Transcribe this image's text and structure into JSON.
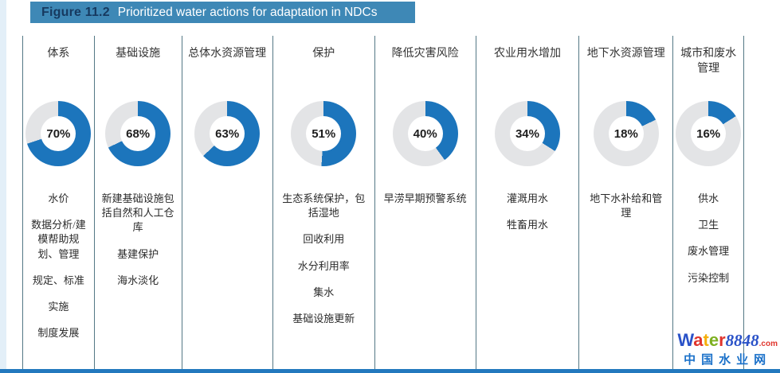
{
  "figure": {
    "label": "Figure 11.2",
    "title": "Prioritized water actions for adaptation in NDCs"
  },
  "colors": {
    "banner_blue": "#3E88B6",
    "figure_label_navy": "#16395F",
    "donut_fill_blue": "#1C75BC",
    "donut_rest_gray": "#E3E4E6",
    "divider_teal": "#547885",
    "bottom_bar_blue": "#2379BE"
  },
  "columns": [
    {
      "header": "体系",
      "percent": 70,
      "percent_label": "70%",
      "items": [
        "水价",
        "数据分析/建模帮助规划、管理",
        "规定、标准",
        "实施",
        "制度发展"
      ]
    },
    {
      "header": "基础设施",
      "percent": 68,
      "percent_label": "68%",
      "items": [
        "新建基础设施包括自然和人工仓库",
        "基建保护",
        "海水淡化"
      ]
    },
    {
      "header": "总体水资源管理",
      "percent": 63,
      "percent_label": "63%",
      "items": []
    },
    {
      "header": "保护",
      "percent": 51,
      "percent_label": "51%",
      "items": [
        "生态系统保护，包括湿地",
        "回收利用",
        "水分利用率",
        "集水",
        "基础设施更新"
      ]
    },
    {
      "header": "降低灾害风险",
      "percent": 40,
      "percent_label": "40%",
      "items": [
        "早涝早期预警系统"
      ]
    },
    {
      "header": "农业用水增加",
      "percent": 34,
      "percent_label": "34%",
      "items": [
        "灌溉用水",
        "牲畜用水"
      ]
    },
    {
      "header": "地下水资源管理",
      "percent": 18,
      "percent_label": "18%",
      "items": [
        "地下水补给和管理"
      ]
    },
    {
      "header": "城市和废水管理",
      "percent": 16,
      "percent_label": "16%",
      "items": [
        "供水",
        "卫生",
        "废水管理",
        "污染控制"
      ]
    }
  ],
  "watermark": {
    "letters": [
      {
        "ch": "W",
        "color": "#2A52C8"
      },
      {
        "ch": "a",
        "color": "#E0342C"
      },
      {
        "ch": "t",
        "color": "#F5AF0B"
      },
      {
        "ch": "e",
        "color": "#7DB020"
      },
      {
        "ch": "r",
        "color": "#E0342C"
      }
    ],
    "number": "8848",
    "number_color": "#2A52C8",
    "tld": ".com",
    "tld_color": "#E0342C",
    "subtitle": "中国水业网",
    "subtitle_color": "#1B71C9"
  },
  "chart_data": {
    "type": "pie",
    "style": "donut-multiples",
    "title": "Figure 11.2 Prioritized water actions for adaptation in NDCs",
    "categories": [
      "体系",
      "基础设施",
      "总体水资源管理",
      "保护",
      "降低灾害风险",
      "农业用水增加",
      "地下水资源管理",
      "城市和废水管理"
    ],
    "values": [
      70,
      68,
      63,
      51,
      40,
      34,
      18,
      16
    ],
    "unit": "%",
    "start_angle_deg": 0,
    "direction": "clockwise",
    "fill_color": "#1C75BC",
    "remainder_color": "#E3E4E6",
    "legend_position": "none"
  }
}
